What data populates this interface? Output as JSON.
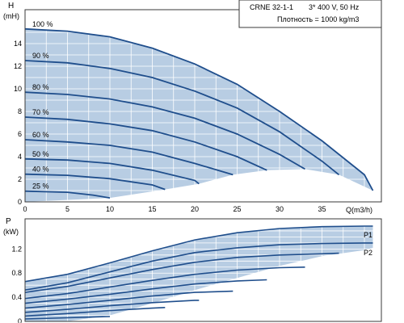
{
  "colors": {
    "curve": "#1f4e8c",
    "fill": "#b8cde3",
    "grid": "#ffffff",
    "frame": "#3a3a3a",
    "text": "#000000"
  },
  "info": {
    "model": "CRNE 32-1-1",
    "supply": "3* 400 V, 50 Hz",
    "density": "Плотность = 1000 kg/m3"
  },
  "chart_data": [
    {
      "type": "line",
      "ylabel_name": "H",
      "ylabel_unit": "(mH)",
      "xlabel": "Q(m3/h)",
      "xlim": [
        0,
        42
      ],
      "ylim": [
        0,
        17
      ],
      "xticks": [
        0,
        5,
        10,
        15,
        20,
        25,
        30,
        35
      ],
      "yticks": [
        0,
        2,
        4,
        6,
        8,
        10,
        12,
        14
      ],
      "grid": true,
      "series": [
        {
          "name": "100 %",
          "x": [
            0,
            5,
            10,
            15,
            20,
            25,
            30,
            35,
            40,
            41
          ],
          "y": [
            15.3,
            15.1,
            14.6,
            13.6,
            12.2,
            10.4,
            8.0,
            5.4,
            2.4,
            1.0
          ]
        },
        {
          "name": "90 %",
          "x": [
            0,
            5,
            10,
            15,
            20,
            25,
            30,
            35,
            37
          ],
          "y": [
            12.5,
            12.3,
            11.8,
            11.0,
            9.8,
            8.3,
            6.2,
            3.6,
            2.4
          ]
        },
        {
          "name": "80 %",
          "x": [
            0,
            5,
            10,
            15,
            20,
            25,
            30,
            33
          ],
          "y": [
            9.7,
            9.5,
            9.1,
            8.4,
            7.4,
            6.0,
            4.2,
            2.9
          ]
        },
        {
          "name": "70 %",
          "x": [
            0,
            5,
            10,
            15,
            20,
            25,
            28.5
          ],
          "y": [
            7.5,
            7.3,
            6.9,
            6.3,
            5.3,
            4.0,
            2.8
          ]
        },
        {
          "name": "60 %",
          "x": [
            0,
            5,
            10,
            15,
            20,
            24.5
          ],
          "y": [
            5.5,
            5.3,
            5.0,
            4.4,
            3.4,
            2.4
          ]
        },
        {
          "name": "50 %",
          "x": [
            0,
            5,
            10,
            15,
            20,
            20.5
          ],
          "y": [
            3.8,
            3.7,
            3.4,
            2.8,
            1.9,
            1.6
          ]
        },
        {
          "name": "40 %",
          "x": [
            0,
            5,
            10,
            15,
            16.5
          ],
          "y": [
            2.45,
            2.35,
            2.05,
            1.5,
            1.1
          ]
        },
        {
          "name": "25 %",
          "x": [
            0,
            5,
            8,
            10
          ],
          "y": [
            0.95,
            0.85,
            0.6,
            0.35
          ]
        }
      ],
      "envelope_right": {
        "x": [
          10,
          16.5,
          20.5,
          24.5,
          28.5,
          33,
          37,
          41
        ],
        "y": [
          0.35,
          1.1,
          1.6,
          2.4,
          2.8,
          2.9,
          2.4,
          1.0
        ]
      }
    },
    {
      "type": "line",
      "ylabel_name": "P",
      "ylabel_unit": "(kW)",
      "xlim": [
        0,
        42
      ],
      "ylim": [
        0,
        1.7
      ],
      "yticks": [
        0,
        0.4,
        0.8,
        1.2
      ],
      "xticks": [
        0,
        5,
        10,
        15,
        20,
        25,
        30,
        35
      ],
      "grid": true,
      "legend": [
        "P1",
        "P2"
      ],
      "band_upper": {
        "x": [
          0,
          5,
          10,
          15,
          20,
          25,
          30,
          35,
          40,
          41
        ],
        "y": [
          0.66,
          0.78,
          0.97,
          1.17,
          1.35,
          1.47,
          1.54,
          1.57,
          1.58,
          1.58
        ]
      },
      "band_lower": {
        "x": [
          0,
          5,
          10,
          15,
          20,
          25,
          30,
          35,
          40,
          41
        ],
        "y": [
          0.0,
          0.0,
          0.1,
          0.3,
          0.52,
          0.72,
          0.92,
          1.08,
          1.18,
          1.22
        ]
      },
      "series": [
        {
          "name": "P1",
          "x": [
            0,
            5,
            10,
            15,
            20,
            25,
            30,
            35,
            40,
            41
          ],
          "y": [
            0.66,
            0.78,
            0.97,
            1.17,
            1.35,
            1.47,
            1.54,
            1.57,
            1.58,
            1.58
          ]
        },
        {
          "name": "P2",
          "x": [
            0,
            5,
            10,
            15,
            20,
            25,
            30,
            35,
            40,
            41
          ],
          "y": [
            0.52,
            0.64,
            0.82,
            1.0,
            1.14,
            1.22,
            1.27,
            1.29,
            1.3,
            1.3
          ]
        },
        {
          "name": "",
          "x": [
            0,
            5,
            10,
            15,
            20,
            25,
            30,
            35,
            37
          ],
          "y": [
            0.48,
            0.58,
            0.72,
            0.86,
            0.98,
            1.06,
            1.1,
            1.12,
            1.13
          ]
        },
        {
          "name": "",
          "x": [
            0,
            5,
            10,
            15,
            20,
            25,
            30,
            33
          ],
          "y": [
            0.38,
            0.46,
            0.57,
            0.68,
            0.78,
            0.85,
            0.89,
            0.9
          ]
        },
        {
          "name": "",
          "x": [
            0,
            5,
            10,
            15,
            20,
            25,
            28.5
          ],
          "y": [
            0.3,
            0.37,
            0.45,
            0.54,
            0.62,
            0.67,
            0.69
          ]
        },
        {
          "name": "",
          "x": [
            0,
            5,
            10,
            15,
            20,
            24.5
          ],
          "y": [
            0.22,
            0.28,
            0.35,
            0.42,
            0.48,
            0.5
          ]
        },
        {
          "name": "",
          "x": [
            0,
            5,
            10,
            15,
            20,
            20.5
          ],
          "y": [
            0.15,
            0.2,
            0.26,
            0.31,
            0.35,
            0.35
          ]
        },
        {
          "name": "",
          "x": [
            0,
            5,
            10,
            15,
            16.5
          ],
          "y": [
            0.09,
            0.13,
            0.18,
            0.22,
            0.23
          ]
        },
        {
          "name": "",
          "x": [
            0,
            5,
            10
          ],
          "y": [
            0.04,
            0.06,
            0.08
          ]
        }
      ]
    }
  ]
}
